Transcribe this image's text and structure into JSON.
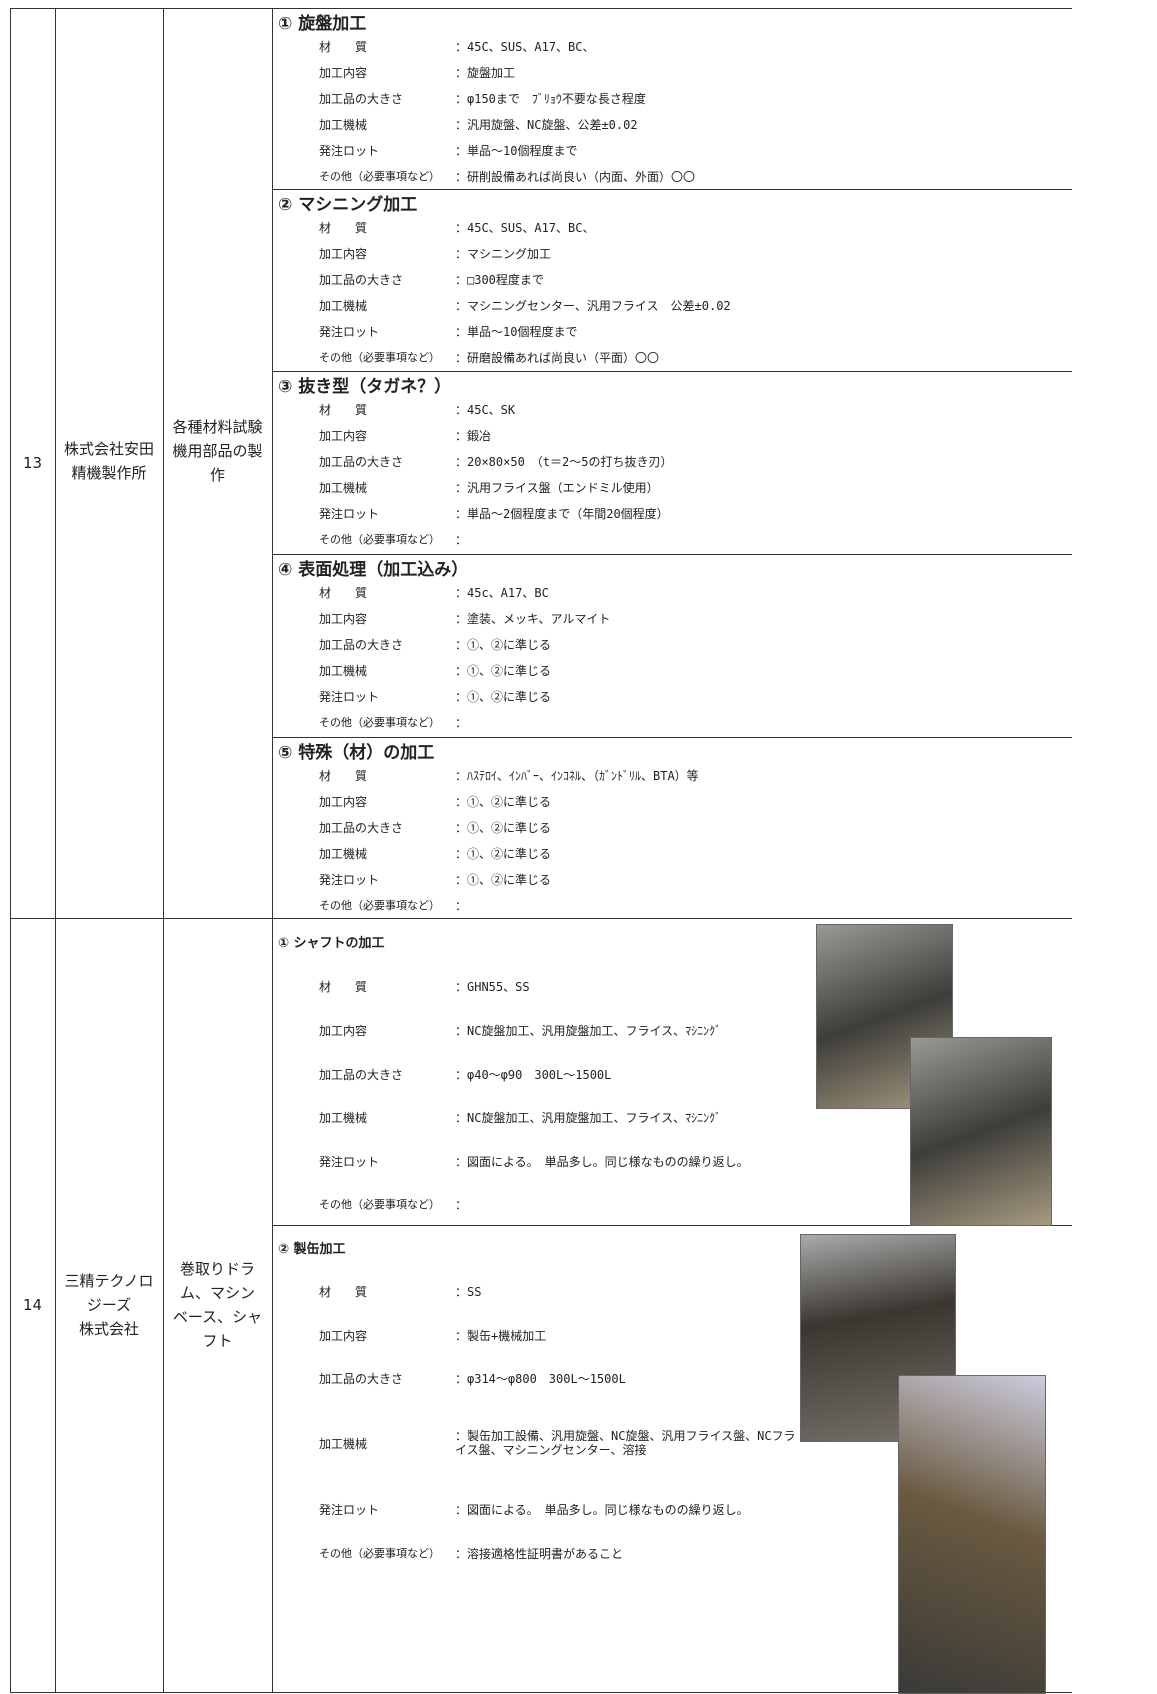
{
  "rows": [
    {
      "no": "13",
      "company_lines": [
        "株式会社安田",
        "精機製作所"
      ],
      "description_lines": [
        "各種材料試験",
        "機用部品の製",
        "作"
      ],
      "sections": [
        {
          "title": "① 旋盤加工",
          "items": [
            {
              "label": "材　　質",
              "value": "：45C、SUS、A17、BC、"
            },
            {
              "label": "加工内容",
              "value": "：旋盤加工"
            },
            {
              "label": "加工品の大きさ",
              "value": "：φ150まで　ﾌﾞﾘｮｳ不要な長さ程度"
            },
            {
              "label": "加工機械",
              "value": "：汎用旋盤、NC旋盤、公差±0.02"
            },
            {
              "label": "発注ロット",
              "value": "：単品～10個程度まで"
            },
            {
              "label": "その他（必要事項など）",
              "value": "：研削設備あれば尚良い（内面、外面）〇〇"
            }
          ]
        },
        {
          "title": "② マシニング加工",
          "items": [
            {
              "label": "材　　質",
              "value": "：45C、SUS、A17、BC、"
            },
            {
              "label": "加工内容",
              "value": "：マシニング加工"
            },
            {
              "label": "加工品の大きさ",
              "value": "：□300程度まで"
            },
            {
              "label": "加工機械",
              "value": "：マシニングセンター、汎用フライス　公差±0.02"
            },
            {
              "label": "発注ロット",
              "value": "：単品～10個程度まで"
            },
            {
              "label": "その他（必要事項など）",
              "value": "：研磨設備あれば尚良い（平面）〇〇"
            }
          ]
        },
        {
          "title": "③ 抜き型（タガネ？）",
          "items": [
            {
              "label": "材　　質",
              "value": "：45C、SK"
            },
            {
              "label": "加工内容",
              "value": "：鍛冶"
            },
            {
              "label": "加工品の大きさ",
              "value": "：20×80×50　（t＝2～5の打ち抜き刃）"
            },
            {
              "label": "加工機械",
              "value": "：汎用フライス盤（エンドミル使用）"
            },
            {
              "label": "発注ロット",
              "value": "：単品～2個程度まで（年間20個程度）"
            },
            {
              "label": "その他（必要事項など）",
              "value": "："
            }
          ]
        },
        {
          "title": "④ 表面処理（加工込み）",
          "items": [
            {
              "label": "材　　質",
              "value": "：45c、A17、BC"
            },
            {
              "label": "加工内容",
              "value": "：塗装、メッキ、アルマイト"
            },
            {
              "label": "加工品の大きさ",
              "value": "：①、②に準じる"
            },
            {
              "label": "加工機械",
              "value": "：①、②に準じる"
            },
            {
              "label": "発注ロット",
              "value": "：①、②に準じる"
            },
            {
              "label": "その他（必要事項など）",
              "value": "："
            }
          ]
        },
        {
          "title": "⑤ 特殊（材）の加工",
          "items": [
            {
              "label": "材　　質",
              "value": "：ﾊｽﾃﾛｲ、ｲﾝﾊﾞｰ、ｲﾝｺﾈﾙ、（ｶﾞﾝﾄﾞﾘﾙ、BTA）等"
            },
            {
              "label": "加工内容",
              "value": "：①、②に準じる"
            },
            {
              "label": "加工品の大きさ",
              "value": "：①、②に準じる"
            },
            {
              "label": "加工機械",
              "value": "：①、②に準じる"
            },
            {
              "label": "発注ロット",
              "value": "：①、②に準じる"
            },
            {
              "label": "その他（必要事項など）",
              "value": "："
            }
          ]
        }
      ]
    },
    {
      "no": "14",
      "company_lines": [
        "三精テクノロ",
        "ジーズ",
        "株式会社"
      ],
      "description_lines": [
        "巻取りドラ",
        "ム、マシン",
        "ベース、シャ",
        "フト"
      ],
      "sections": [
        {
          "title": "① シャフトの加工",
          "items": [
            {
              "label": "材　　質",
              "value": "：GHN55、SS"
            },
            {
              "label": "加工内容",
              "value": "：NC旋盤加工、汎用旋盤加工、フライス、ﾏｼﾆﾝｸﾞ"
            },
            {
              "label": "加工品の大きさ",
              "value": "：φ40～φ90　300L～1500L"
            },
            {
              "label": "加工機械",
              "value": "：NC旋盤加工、汎用旋盤加工、フライス、ﾏｼﾆﾝｸﾞ"
            },
            {
              "label": "発注ロット",
              "value": "：図面による。　単品多し。同じ様なものの繰り返し。"
            },
            {
              "label": "その他（必要事項など）",
              "value": "："
            }
          ]
        },
        {
          "title": "② 製缶加工",
          "items": [
            {
              "label": "材　　質",
              "value": "：SS"
            },
            {
              "label": "加工内容",
              "value": "：製缶+機械加工"
            },
            {
              "label": "加工品の大きさ",
              "value": "：φ314～φ800　300L～1500L"
            },
            {
              "label": "加工機械",
              "value": "：製缶加工設備、汎用旋盤、NC旋盤、汎用フライス盤、NCフライス盤、マシニングセンター、溶接"
            },
            {
              "label": "発注ロット",
              "value": "：図面による。　単品多し。同じ様なものの繰り返し。"
            },
            {
              "label": "その他（必要事項など）",
              "value": "：溶接適格性証明書があること"
            }
          ]
        }
      ]
    }
  ]
}
